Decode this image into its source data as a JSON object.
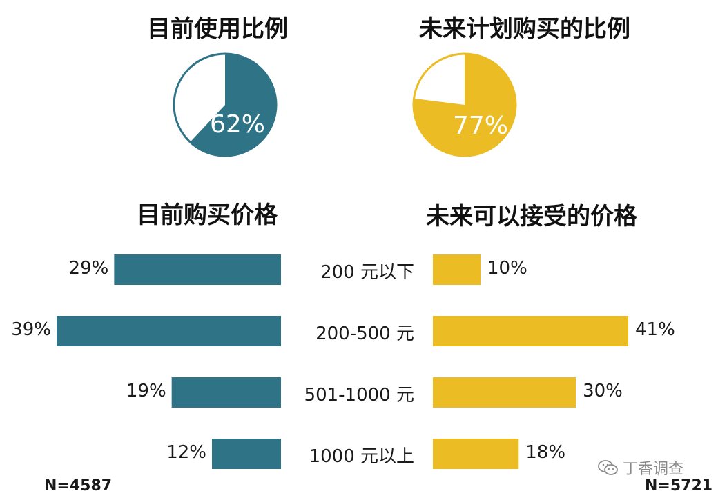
{
  "chart_data": [
    {
      "type": "pie",
      "title": "目前使用比例",
      "values": [
        62,
        38
      ],
      "label": "62%",
      "colors": [
        "#2e7486",
        "#ffffff"
      ]
    },
    {
      "type": "pie",
      "title": "未来计划购买的比例",
      "values": [
        77,
        23
      ],
      "label": "77%",
      "colors": [
        "#ebbc23",
        "#ffffff"
      ]
    },
    {
      "type": "bar",
      "title": "目前购买价格",
      "orientation": "horizontal",
      "direction": "right-to-left",
      "categories": [
        "200 元以下",
        "200-500 元",
        "501-1000 元",
        "1000 元以上"
      ],
      "values": [
        29,
        39,
        19,
        12
      ],
      "value_labels": [
        "29%",
        "39%",
        "19%",
        "12%"
      ],
      "color": "#2e7486",
      "note": "N=4587"
    },
    {
      "type": "bar",
      "title": "未来可以接受的价格",
      "orientation": "horizontal",
      "direction": "left-to-right",
      "categories": [
        "200 元以下",
        "200-500 元",
        "501-1000 元",
        "1000 元以上"
      ],
      "values": [
        10,
        41,
        30,
        18
      ],
      "value_labels": [
        "10%",
        "41%",
        "30%",
        "18%"
      ],
      "color": "#ebbc23",
      "note": "N=5721"
    }
  ],
  "watermark": "丁香调查"
}
